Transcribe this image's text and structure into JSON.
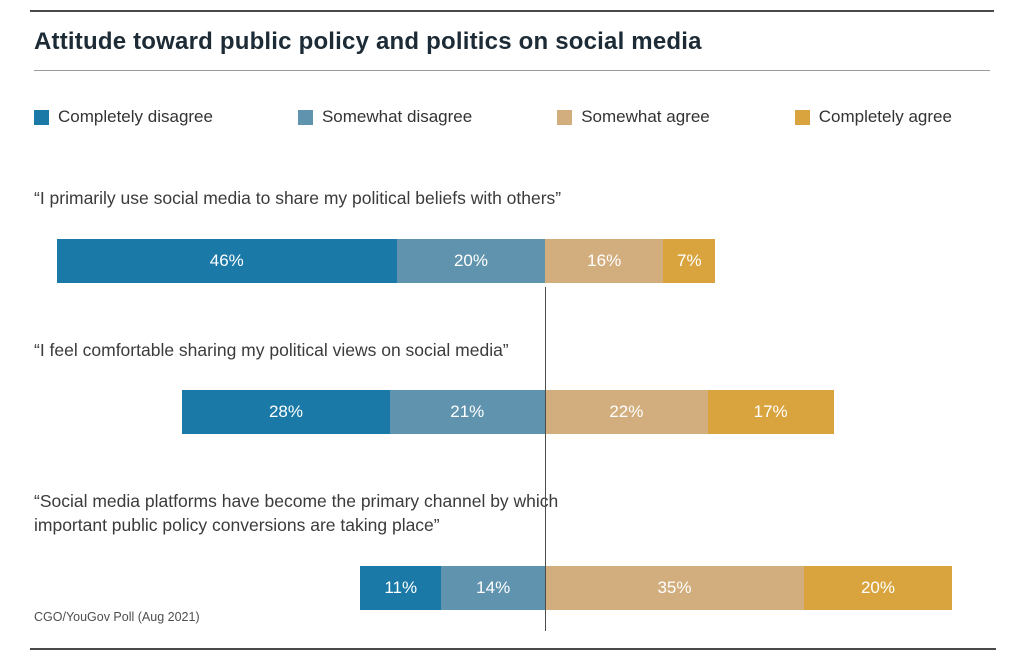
{
  "chart_data": {
    "type": "bar",
    "variant": "diverging-stacked-horizontal",
    "title": "Attitude toward public policy and politics on social media",
    "source": "CGO/YouGov Poll (Aug 2021)",
    "legend_position": "top",
    "grid": false,
    "center_line": true,
    "value_suffix": "%",
    "series_labels": [
      "Completely disagree",
      "Somewhat disagree",
      "Somewhat agree",
      "Completely agree"
    ],
    "series_colors": [
      "#1a79a6",
      "#6093ad",
      "#d2ae7e",
      "#d9a43e"
    ],
    "categories": [
      "“I primarily use social media to share my political beliefs with others”",
      "“I feel comfortable sharing my political views on social media”",
      "“Social media platforms have become the primary channel by which\n important public policy conversions are taking place”"
    ],
    "series": [
      {
        "name": "Completely disagree",
        "values": [
          46,
          28,
          11
        ]
      },
      {
        "name": "Somewhat disagree",
        "values": [
          20,
          21,
          14
        ]
      },
      {
        "name": "Somewhat agree",
        "values": [
          16,
          22,
          35
        ]
      },
      {
        "name": "Completely agree",
        "values": [
          7,
          17,
          20
        ]
      }
    ]
  }
}
